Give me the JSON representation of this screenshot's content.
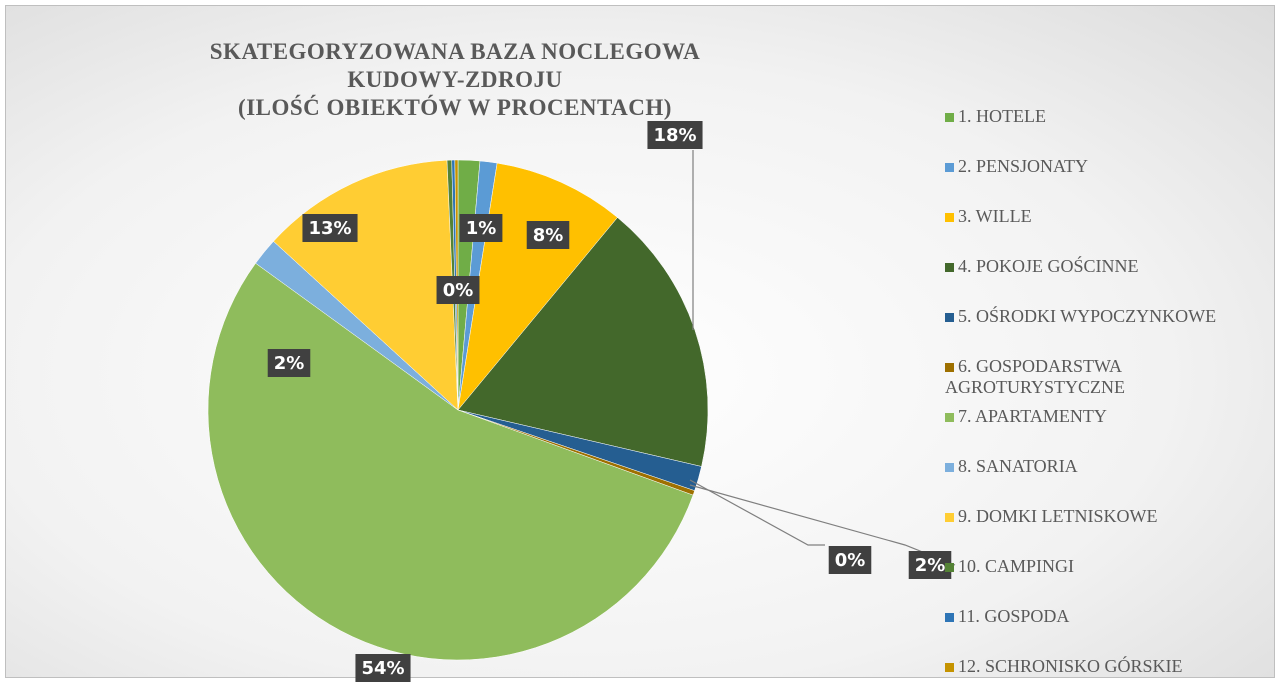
{
  "chart_data": {
    "type": "pie",
    "title": "SKATEGORYZOWANA BAZA NOCLEGOWA\nKUDOWY-ZDROJU\n(ILOŚĆ OBIEKTÓW W PROCENTACH)",
    "categories": [
      "1. HOTELE",
      "2. PENSJONATY",
      "3. WILLE",
      "4. POKOJE GOŚCINNE",
      "5. OŚRODKI WYPOCZYNKOWE",
      "6. GOSPODARSTWA AGROTURYSTYCZNE",
      "7. APARTAMENTY",
      "8. SANATORIA",
      "9. DOMKI LETNISKOWE",
      "10. CAMPINGI",
      "11. GOSPODA",
      "12. SCHRONISKO GÓRSKIE"
    ],
    "values": [
      1.4,
      1.1,
      8.5,
      17.6,
      1.6,
      0.3,
      54.4,
      1.8,
      12.5,
      0.3,
      0.2,
      0.2
    ],
    "value_labels": [
      "1%",
      "1%",
      "8%",
      "18%",
      "2%",
      "0%",
      "54%",
      "2%",
      "13%",
      "0%",
      "0%",
      "0%"
    ],
    "colors": [
      "#70ad47",
      "#5b9bd5",
      "#ffc000",
      "#43682b",
      "#255e91",
      "#9e7000",
      "#8fbc5c",
      "#7cafdd",
      "#ffcd33",
      "#548235",
      "#2e75b6",
      "#c59300"
    ],
    "legend": "right"
  }
}
